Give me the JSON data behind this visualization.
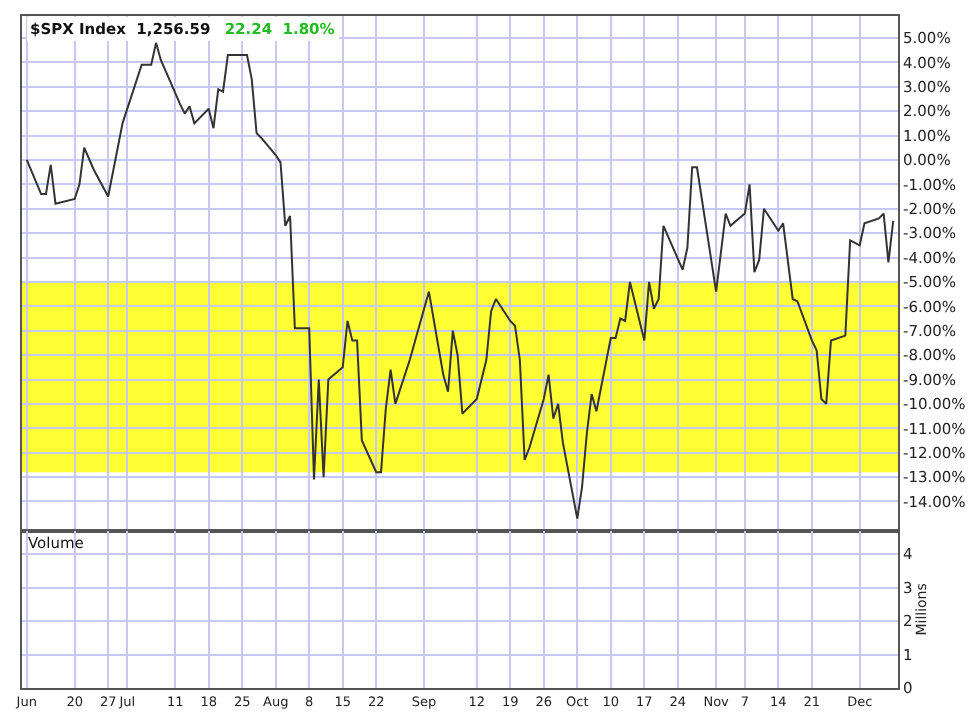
{
  "chart_data": [
    {
      "type": "line",
      "title": "$SPX Index  1,256.59",
      "subtitle": "22.24  1.80%",
      "color": "#333333",
      "line_style": "solid",
      "marker": "none",
      "grid": true,
      "tick_labels": "y",
      "x": [
        "--06-10",
        "--06-13",
        "--06-14",
        "--06-15",
        "--06-16",
        "--06-20",
        "--06-21",
        "--06-22",
        "--06-24",
        "--06-27",
        "--06-29",
        "--06-30",
        "--07-04",
        "--07-06",
        "--07-07",
        "--07-08",
        "--07-12",
        "--07-13",
        "--07-14",
        "--07-15",
        "--07-18",
        "--07-19",
        "--07-20",
        "--07-21",
        "--07-22",
        "--07-26",
        "--07-27",
        "--07-28",
        "--07-29",
        "--08-01",
        "--08-02",
        "--08-03",
        "--08-04",
        "--08-05",
        "--08-08",
        "--08-09",
        "--08-10",
        "--08-11",
        "--08-12",
        "--08-15",
        "--08-16",
        "--08-17",
        "--08-18",
        "--08-19",
        "--08-22",
        "--08-23",
        "--08-24",
        "--08-25",
        "--08-26",
        "--08-29",
        "--09-01",
        "--09-02",
        "--09-05",
        "--09-06",
        "--09-07",
        "--09-08",
        "--09-09",
        "--09-12",
        "--09-14",
        "--09-15",
        "--09-16",
        "--09-19",
        "--09-20",
        "--09-21",
        "--09-22",
        "--09-23",
        "--09-26",
        "--09-27",
        "--09-28",
        "--09-29",
        "--09-30",
        "--10-03",
        "--10-04",
        "--10-05",
        "--10-06",
        "--10-07",
        "--10-10",
        "--10-11",
        "--10-12",
        "--10-13",
        "--10-14",
        "--10-17",
        "--10-18",
        "--10-19",
        "--10-20",
        "--10-21",
        "--10-25",
        "--10-26",
        "--10-27",
        "--10-28",
        "--11-01",
        "--11-03",
        "--11-04",
        "--11-07",
        "--11-08",
        "--11-09",
        "--11-10",
        "--11-11",
        "--11-14",
        "--11-15",
        "--11-17",
        "--11-18",
        "--11-21",
        "--11-22",
        "--11-23",
        "--11-24",
        "--11-25",
        "--11-28",
        "--11-29",
        "--12-01",
        "--12-02",
        "--12-05",
        "--12-06",
        "--12-07",
        "--12-08"
      ],
      "values": [
        0.0,
        -1.4,
        -1.4,
        -0.2,
        -1.8,
        -1.6,
        -1.0,
        0.5,
        -0.4,
        -1.5,
        0.5,
        1.5,
        3.9,
        3.9,
        4.8,
        4.1,
        2.3,
        1.9,
        2.2,
        1.5,
        2.1,
        1.3,
        2.9,
        2.8,
        4.3,
        4.3,
        3.3,
        1.1,
        0.9,
        0.2,
        -0.1,
        -2.7,
        -2.3,
        -6.9,
        -6.9,
        -13.1,
        -9.0,
        -13.0,
        -9.0,
        -8.5,
        -6.6,
        -7.4,
        -7.4,
        -11.5,
        -12.8,
        -12.8,
        -10.2,
        -8.6,
        -10.0,
        -8.2,
        -6.1,
        -5.4,
        -8.8,
        -9.5,
        -7.0,
        -8.0,
        -10.4,
        -9.8,
        -8.2,
        -6.2,
        -5.7,
        -6.6,
        -6.8,
        -8.2,
        -12.3,
        -11.8,
        -9.8,
        -8.8,
        -10.6,
        -10.0,
        -11.6,
        -14.7,
        -13.4,
        -11.2,
        -9.6,
        -10.3,
        -7.3,
        -7.3,
        -6.5,
        -6.6,
        -5.0,
        -7.4,
        -5.0,
        -6.1,
        -5.7,
        -2.7,
        -4.5,
        -3.6,
        -0.3,
        -0.3,
        -5.4,
        -2.2,
        -2.7,
        -2.2,
        -1.0,
        -4.6,
        -4.1,
        -2.0,
        -2.9,
        -2.6,
        -5.7,
        -5.8,
        -7.4,
        -7.8,
        -9.8,
        -10.0,
        -7.4,
        -7.2,
        -3.3,
        -3.5,
        -2.6,
        -2.4,
        -2.2,
        -4.2,
        -2.5
      ],
      "xlim": [
        "--06-09",
        "--12-09"
      ],
      "xticks": [
        {
          "value": "--06-10",
          "label": "Jun"
        },
        {
          "value": "--06-20",
          "label": "20"
        },
        {
          "value": "--06-27",
          "label": "27"
        },
        {
          "value": "--07-01",
          "label": "Jul"
        },
        {
          "value": "--07-11",
          "label": "11"
        },
        {
          "value": "--07-18",
          "label": "18"
        },
        {
          "value": "--07-25",
          "label": "25"
        },
        {
          "value": "--08-01",
          "label": "Aug"
        },
        {
          "value": "--08-08",
          "label": "8"
        },
        {
          "value": "--08-15",
          "label": "15"
        },
        {
          "value": "--08-22",
          "label": "22"
        },
        {
          "value": "--09-01",
          "label": "Sep"
        },
        {
          "value": "--09-12",
          "label": "12"
        },
        {
          "value": "--09-19",
          "label": "19"
        },
        {
          "value": "--09-26",
          "label": "26"
        },
        {
          "value": "--10-03",
          "label": "Oct"
        },
        {
          "value": "--10-10",
          "label": "10"
        },
        {
          "value": "--10-17",
          "label": "17"
        },
        {
          "value": "--10-24",
          "label": "24"
        },
        {
          "value": "--11-01",
          "label": "Nov"
        },
        {
          "value": "--11-07",
          "label": "7"
        },
        {
          "value": "--11-14",
          "label": "14"
        },
        {
          "value": "--11-21",
          "label": "21"
        },
        {
          "value": "--12-01",
          "label": "Dec"
        }
      ],
      "ylim": [
        -15.2,
        5.9
      ],
      "yticks": [
        {
          "value": 5,
          "label": "5.00%"
        },
        {
          "value": 4,
          "label": "4.00%"
        },
        {
          "value": 3,
          "label": "3.00%"
        },
        {
          "value": 2,
          "label": "2.00%"
        },
        {
          "value": 1,
          "label": "1.00%"
        },
        {
          "value": 0,
          "label": "0.00%"
        },
        {
          "value": -1,
          "label": "-1.00%"
        },
        {
          "value": -2,
          "label": "-2.00%"
        },
        {
          "value": -3,
          "label": "-3.00%"
        },
        {
          "value": -4,
          "label": "-4.00%"
        },
        {
          "value": -5,
          "label": "-5.00%"
        },
        {
          "value": -6,
          "label": "-6.00%"
        },
        {
          "value": -7,
          "label": "-7.00%"
        },
        {
          "value": -8,
          "label": "-8.00%"
        },
        {
          "value": -9,
          "label": "-9.00%"
        },
        {
          "value": -10,
          "label": "-10.00%"
        },
        {
          "value": -11,
          "label": "-11.00%"
        },
        {
          "value": -12,
          "label": "-12.00%"
        },
        {
          "value": -13,
          "label": "-13.00%"
        },
        {
          "value": -14,
          "label": "-14.00%"
        }
      ],
      "bands": [
        {
          "axis": "y",
          "from": -12.8,
          "to": -5.0,
          "color": "#ffff33"
        }
      ]
    },
    {
      "type": "bar",
      "grid": true,
      "ylabel": "Millions",
      "annotations": [
        "Volume"
      ],
      "xlim": [
        "--06-09",
        "--12-09"
      ],
      "xticks": [
        {
          "value": "--06-10",
          "label": "Jun"
        },
        {
          "value": "--06-20",
          "label": "20"
        },
        {
          "value": "--06-27",
          "label": "27"
        },
        {
          "value": "--07-01",
          "label": "Jul"
        },
        {
          "value": "--07-11",
          "label": "11"
        },
        {
          "value": "--07-18",
          "label": "18"
        },
        {
          "value": "--07-25",
          "label": "25"
        },
        {
          "value": "--08-01",
          "label": "Aug"
        },
        {
          "value": "--08-08",
          "label": "8"
        },
        {
          "value": "--08-15",
          "label": "15"
        },
        {
          "value": "--08-22",
          "label": "22"
        },
        {
          "value": "--09-01",
          "label": "Sep"
        },
        {
          "value": "--09-12",
          "label": "12"
        },
        {
          "value": "--09-19",
          "label": "19"
        },
        {
          "value": "--09-26",
          "label": "26"
        },
        {
          "value": "--10-03",
          "label": "Oct"
        },
        {
          "value": "--10-10",
          "label": "10"
        },
        {
          "value": "--10-17",
          "label": "17"
        },
        {
          "value": "--10-24",
          "label": "24"
        },
        {
          "value": "--11-01",
          "label": "Nov"
        },
        {
          "value": "--11-07",
          "label": "7"
        },
        {
          "value": "--11-14",
          "label": "14"
        },
        {
          "value": "--11-21",
          "label": "21"
        },
        {
          "value": "--12-01",
          "label": "Dec"
        }
      ],
      "ylim": [
        0,
        4.7
      ],
      "yticks": [
        0,
        1,
        2,
        3,
        4
      ]
    }
  ]
}
